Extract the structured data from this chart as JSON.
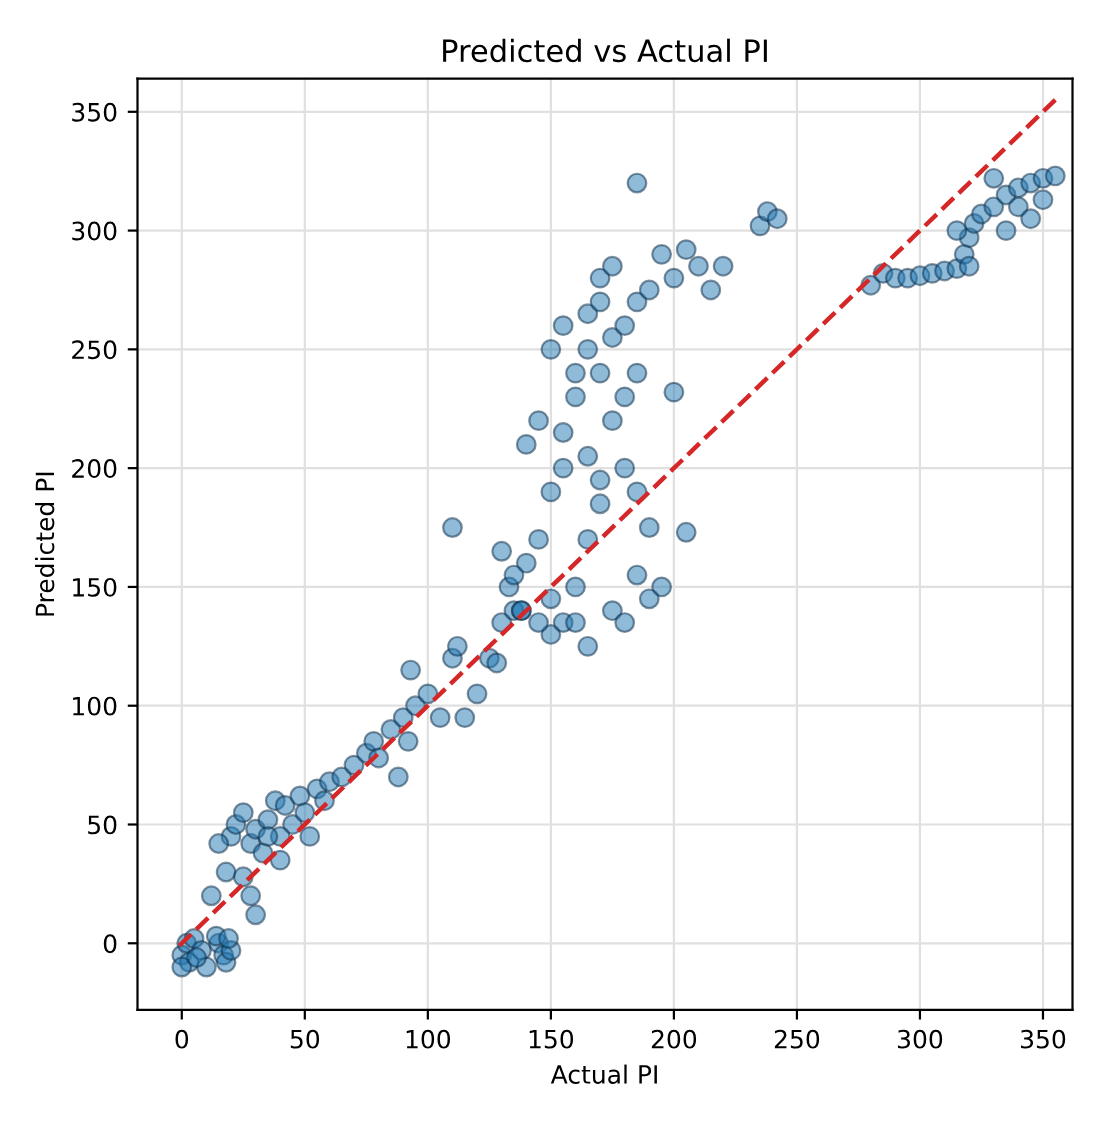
{
  "chart_data": {
    "type": "scatter",
    "title": "Predicted vs Actual PI",
    "xlabel": "Actual PI",
    "ylabel": "Predicted PI",
    "xlim": [
      -18,
      362
    ],
    "ylim": [
      -28,
      364
    ],
    "xticks": [
      0,
      50,
      100,
      150,
      200,
      250,
      300,
      350
    ],
    "yticks": [
      0,
      50,
      100,
      150,
      200,
      250,
      300,
      350
    ],
    "grid": true,
    "series": [
      {
        "marker": "circle",
        "color": "#1f77b4",
        "x": [
          0,
          2,
          5,
          3,
          8,
          15,
          17,
          18,
          20,
          14,
          10,
          19,
          0,
          6,
          12,
          18,
          20,
          22,
          25,
          28,
          30,
          33,
          35,
          38,
          40,
          42,
          45,
          48,
          50,
          52,
          55,
          58,
          60,
          25,
          30,
          28,
          40,
          35,
          15,
          65,
          70,
          75,
          78,
          80,
          85,
          88,
          90,
          92,
          95,
          93,
          100,
          105,
          110,
          115,
          120,
          112,
          125,
          128,
          130,
          133,
          135,
          138,
          140,
          145,
          130,
          150,
          155,
          160,
          165,
          170,
          150,
          140,
          145,
          155,
          160,
          165,
          170,
          175,
          180,
          185,
          190,
          170,
          175,
          180,
          185,
          160,
          150,
          155,
          165,
          170,
          175,
          180,
          185,
          190,
          195,
          205,
          185,
          200,
          195,
          205,
          210,
          200,
          215,
          220,
          235,
          238,
          242,
          175,
          180,
          185,
          190,
          165,
          160,
          145,
          135,
          138,
          150,
          155,
          165,
          170,
          110,
          280,
          285,
          290,
          295,
          300,
          305,
          310,
          315,
          318,
          320,
          322,
          325,
          330,
          335,
          340,
          345,
          350,
          355,
          330,
          340,
          345,
          350,
          315,
          320,
          335
        ],
        "values": [
          -5,
          0,
          2,
          -8,
          -3,
          0,
          -5,
          -8,
          -3,
          3,
          -10,
          2,
          -10,
          -6,
          20,
          30,
          45,
          50,
          55,
          42,
          48,
          38,
          52,
          60,
          35,
          58,
          50,
          62,
          55,
          45,
          65,
          60,
          68,
          28,
          12,
          20,
          45,
          45,
          42,
          70,
          75,
          80,
          85,
          78,
          90,
          70,
          95,
          85,
          100,
          115,
          105,
          95,
          120,
          95,
          105,
          125,
          120,
          118,
          135,
          150,
          140,
          140,
          160,
          170,
          165,
          130,
          135,
          150,
          170,
          185,
          190,
          210,
          220,
          215,
          230,
          250,
          240,
          255,
          260,
          270,
          275,
          280,
          285,
          230,
          240,
          240,
          250,
          260,
          265,
          270,
          220,
          200,
          190,
          175,
          150,
          173,
          320,
          280,
          290,
          292,
          285,
          232,
          275,
          285,
          302,
          308,
          305,
          140,
          135,
          155,
          145,
          125,
          135,
          135,
          155,
          140,
          145,
          200,
          205,
          195,
          175,
          277,
          282,
          280,
          280,
          281,
          282,
          283,
          284,
          290,
          297,
          303,
          307,
          310,
          315,
          318,
          320,
          322,
          323,
          322,
          310,
          305,
          313,
          300,
          285,
          300
        ]
      },
      {
        "type": "line",
        "marker": "none",
        "color": "#d62728",
        "line_style": "dashed",
        "x": [
          -1,
          355
        ],
        "values": [
          -1,
          355
        ]
      }
    ]
  }
}
